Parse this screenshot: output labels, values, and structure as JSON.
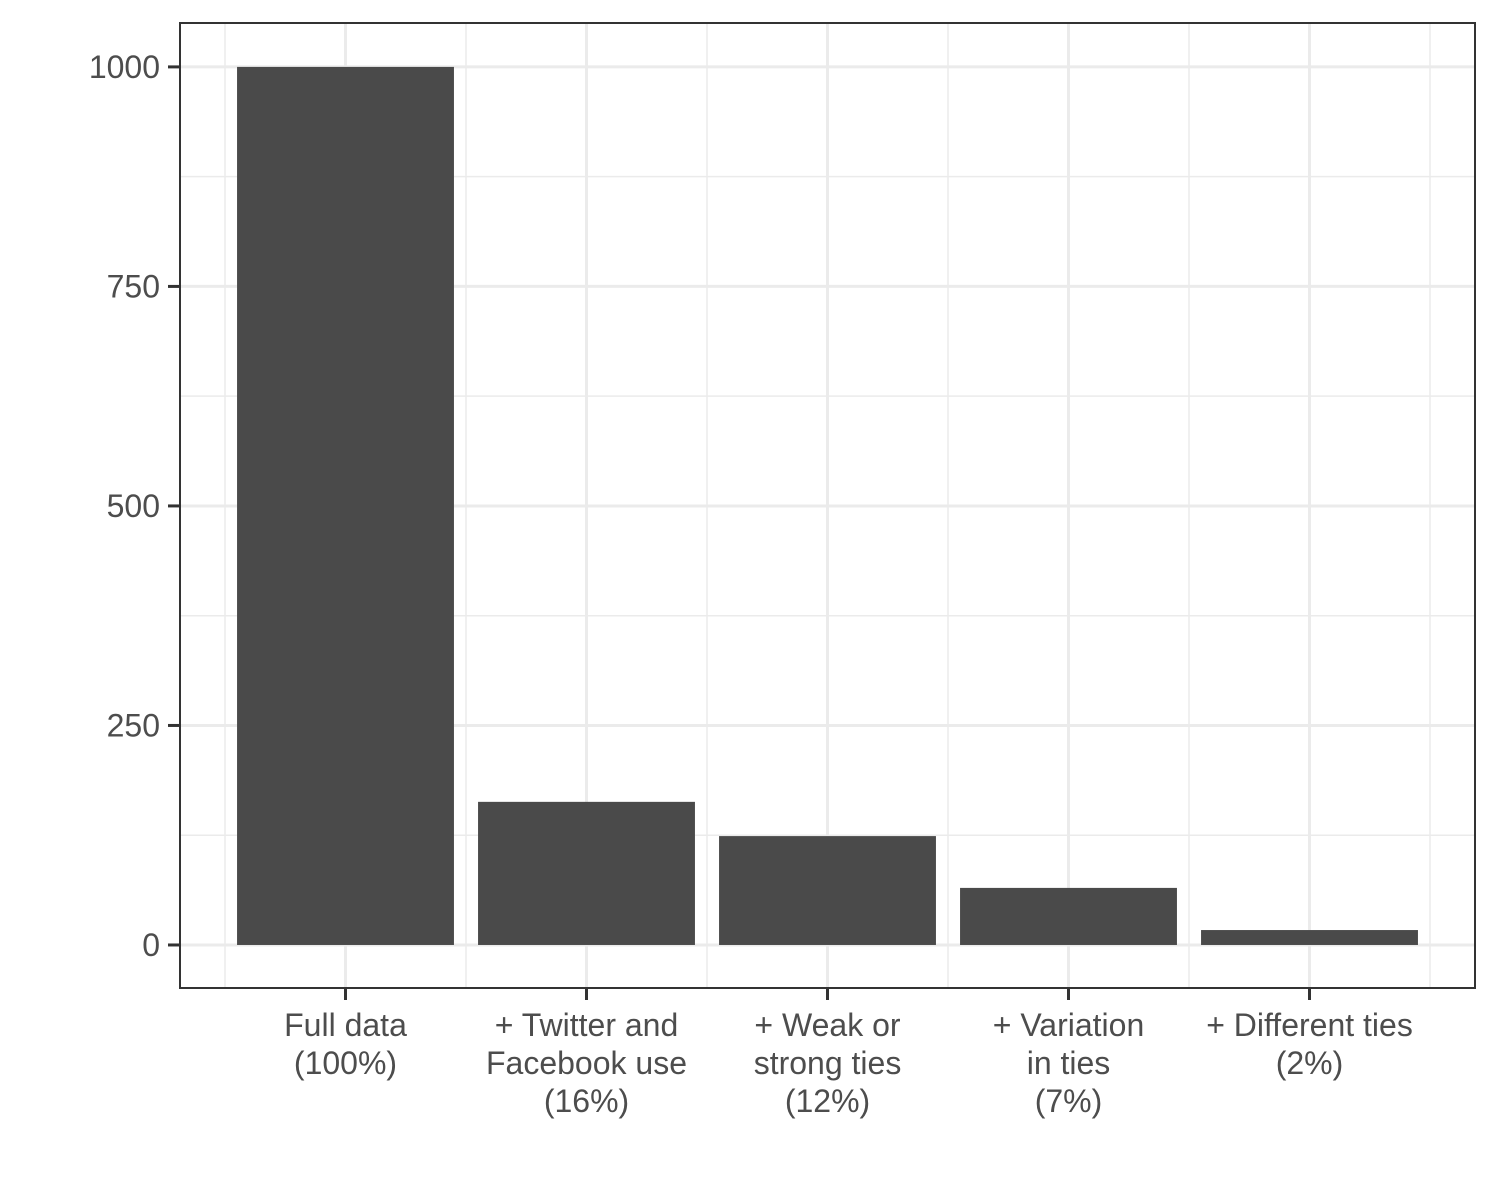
{
  "chart_data": {
    "type": "bar",
    "categories": [
      [
        "Full data",
        "(100%)"
      ],
      [
        "+ Twitter and",
        "Facebook use",
        "(16%)"
      ],
      [
        "+ Weak or",
        "strong ties",
        "(12%)"
      ],
      [
        "+ Variation",
        "in ties",
        "(7%)"
      ],
      [
        "+ Different ties",
        "(2%)"
      ]
    ],
    "values": [
      1000,
      163,
      124,
      65,
      17
    ],
    "color": "#4a4a4a",
    "ylim": [
      -49,
      1050
    ],
    "yticks": [
      0,
      250,
      500,
      750,
      1000
    ],
    "yminorticks": [
      125,
      375,
      625,
      875
    ],
    "grid": true
  }
}
